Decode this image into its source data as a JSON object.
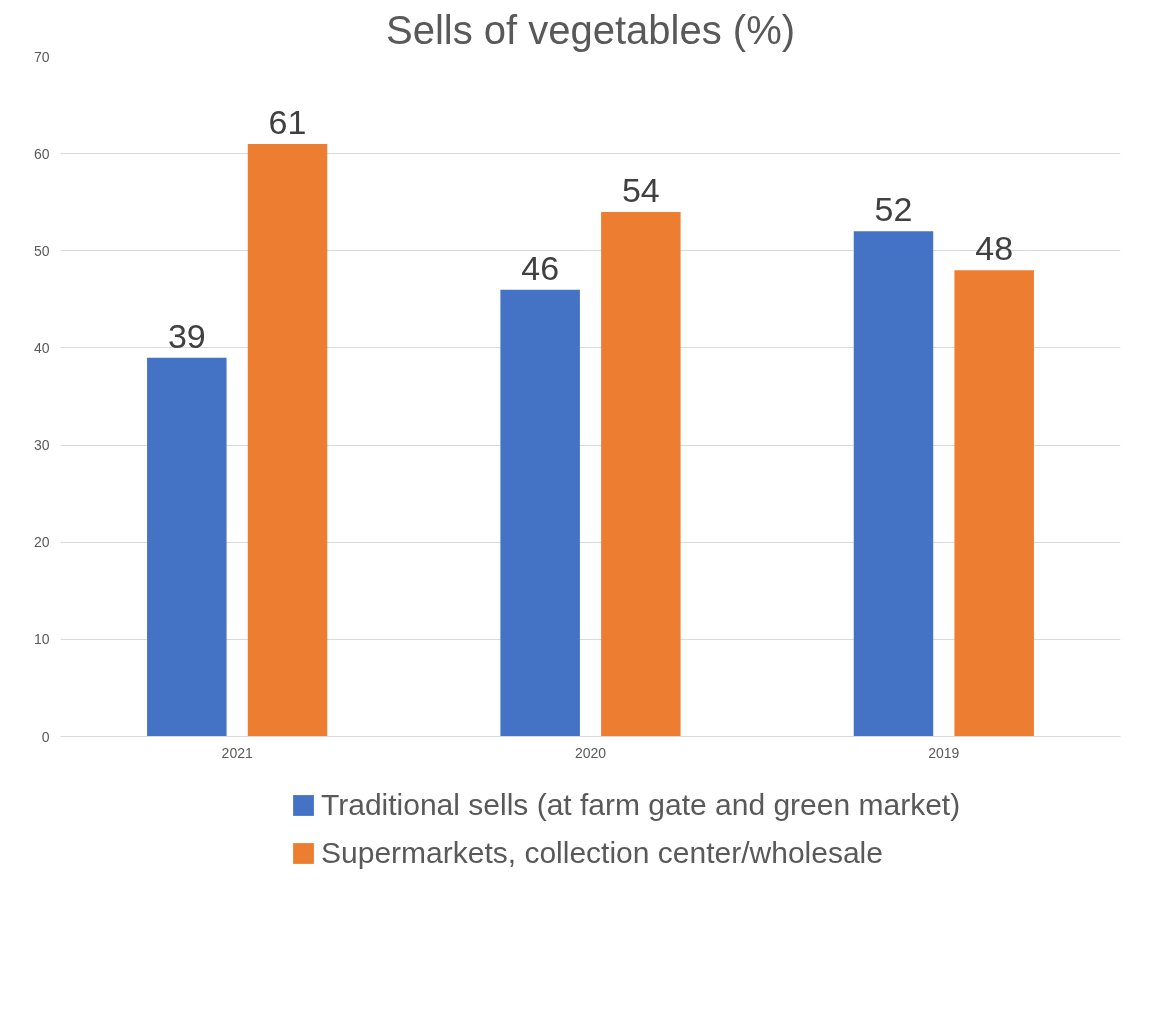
{
  "chart_data": {
    "type": "bar",
    "title": "Sells of vegetables (%)",
    "categories": [
      "2021",
      "2020",
      "2019"
    ],
    "series": [
      {
        "name": "Traditional sells (at farm gate and green market)",
        "color": "#4472c4",
        "values": [
          39,
          46,
          52
        ]
      },
      {
        "name": "Supermarkets, collection center/wholesale",
        "color": "#ed7d31",
        "values": [
          61,
          54,
          48
        ]
      }
    ],
    "ylim": [
      0,
      70
    ],
    "yticks": [
      0,
      10,
      20,
      30,
      40,
      50,
      60,
      70
    ],
    "grid": "y",
    "data_labels": true,
    "legend": "bottom"
  }
}
